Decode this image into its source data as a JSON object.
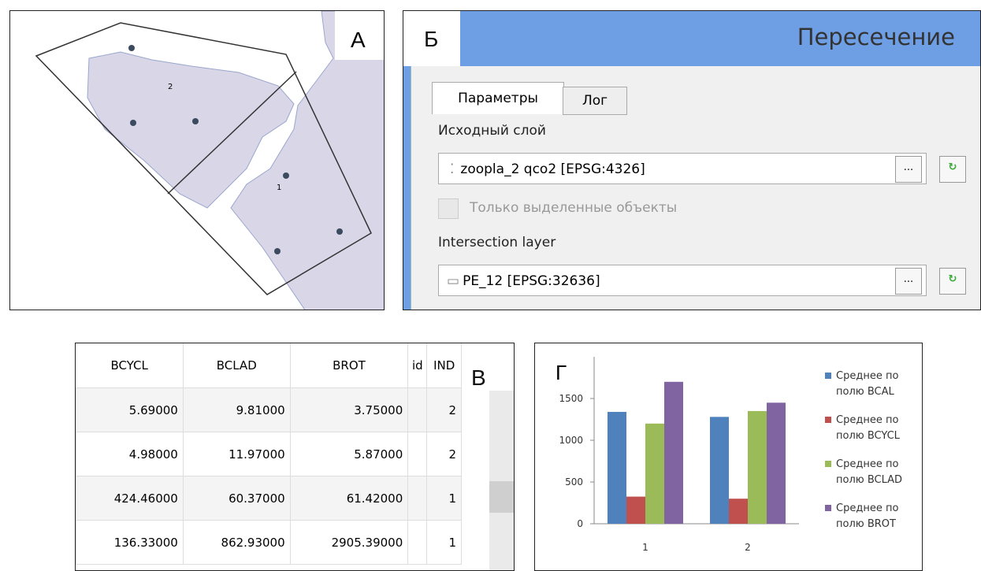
{
  "map": {
    "label": "А",
    "point_labels": [
      "2",
      "1"
    ]
  },
  "dialog": {
    "label": "Б",
    "title": "Пересечение",
    "tabs": [
      "Параметры",
      "Лог"
    ],
    "input_label": "Исходный слой",
    "input_value": "zoopla_2 qco2 [EPSG:4326]",
    "selected_only": "Только выделенные объекты",
    "overlay_label": "Intersection layer",
    "overlay_value": "PE_12 [EPSG:32636]",
    "button": "..."
  },
  "table": {
    "label": "В",
    "columns": [
      "BCYCL",
      "BCLAD",
      "BROT",
      "id",
      "IND"
    ],
    "rows": [
      [
        "5.69000",
        "9.81000",
        "3.75000",
        null,
        "2"
      ],
      [
        "4.98000",
        "11.97000",
        "5.87000",
        null,
        "2"
      ],
      [
        "424.46000",
        "60.37000",
        "61.42000",
        null,
        "1"
      ],
      [
        "136.33000",
        "862.93000",
        "2905.39000",
        null,
        "1"
      ]
    ]
  },
  "chart_data": {
    "type": "bar",
    "label": "Г",
    "categories": [
      "1",
      "2"
    ],
    "series": [
      {
        "name": "Среднее по полю BCAL",
        "color": "#4f81bd",
        "values": [
          1340,
          1280
        ]
      },
      {
        "name": "Среднее по полю BCYCL",
        "color": "#c0504d",
        "values": [
          325,
          300
        ]
      },
      {
        "name": "Среднее по полю BCLAD",
        "color": "#9bbb59",
        "values": [
          1200,
          1350
        ]
      },
      {
        "name": "Среднее по полю BROT",
        "color": "#8064a2",
        "values": [
          1700,
          1450
        ]
      }
    ],
    "ylim": [
      0,
      2000
    ],
    "yticks": [
      0,
      500,
      1000,
      1500
    ],
    "grid": false
  }
}
